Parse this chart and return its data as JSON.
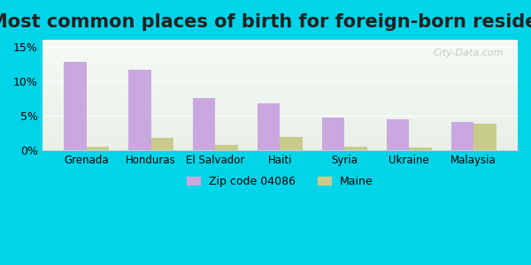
{
  "title": "Most common places of birth for foreign-born residents",
  "categories": [
    "Grenada",
    "Honduras",
    "El Salvador",
    "Haiti",
    "Syria",
    "Ukraine",
    "Malaysia"
  ],
  "zip_values": [
    12.8,
    11.7,
    7.6,
    6.8,
    4.8,
    4.5,
    4.1
  ],
  "maine_values": [
    0.5,
    1.8,
    0.8,
    2.0,
    0.5,
    0.4,
    3.9
  ],
  "zip_color": "#c9a8e0",
  "maine_color": "#c8cc8a",
  "zip_label": "Zip code 04086",
  "maine_label": "Maine",
  "ylim": [
    0,
    16
  ],
  "yticks": [
    0,
    5,
    10,
    15
  ],
  "ytick_labels": [
    "0%",
    "5%",
    "10%",
    "15%"
  ],
  "bg_outer": "#00d4e8",
  "bg_plot_top": "#e8f0e8",
  "title_fontsize": 15,
  "watermark": "City-Data.com"
}
